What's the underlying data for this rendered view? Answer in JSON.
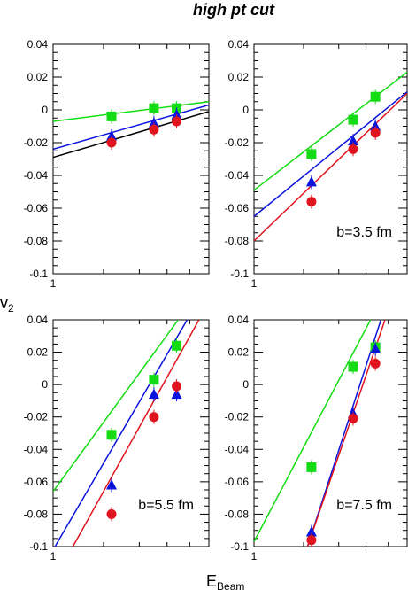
{
  "figure": {
    "title": "high pt cut",
    "ylabel_main": "v",
    "ylabel_sub": "2",
    "xlabel_main": "E",
    "xlabel_sub": "Beam"
  },
  "colors": {
    "red": "#e0141e",
    "blue": "#0a14dc",
    "green": "#14dc14",
    "black": "#000000"
  },
  "chart_data": [
    {
      "type": "scatter",
      "panel": "top-left",
      "note": "",
      "xscale": "log",
      "xlim": [
        1,
        3.5
      ],
      "ylim": [
        -0.1,
        0.04
      ],
      "x_tick_labels": [
        "1"
      ],
      "y_tick_labels": [
        "0.04",
        "0.02",
        "0",
        "-0.02",
        "-0.04",
        "-0.06",
        "-0.08",
        "-0.1"
      ],
      "series": [
        {
          "color": "green",
          "marker": "square",
          "x": [
            1.6,
            2.25,
            2.7
          ],
          "y": [
            -0.004,
            0.001,
            0.001
          ],
          "fit": [
            [
              1,
              -0.007
            ],
            [
              3.5,
              0.005
            ]
          ]
        },
        {
          "color": "blue",
          "marker": "triangle",
          "x": [
            1.6,
            2.25,
            2.7
          ],
          "y": [
            -0.016,
            -0.008,
            -0.003
          ],
          "fit": [
            [
              1,
              -0.024
            ],
            [
              3.5,
              0.003
            ]
          ]
        },
        {
          "color": "red",
          "marker": "circle",
          "x": [
            1.6,
            2.25,
            2.7
          ],
          "y": [
            -0.02,
            -0.012,
            -0.007
          ],
          "fit": null
        },
        {
          "color": "black",
          "marker": "none",
          "x": [],
          "y": [],
          "fit": [
            [
              1,
              -0.029
            ],
            [
              3.5,
              -0.001
            ]
          ]
        }
      ]
    },
    {
      "type": "scatter",
      "panel": "top-right",
      "note": "b=3.5 fm",
      "xscale": "log",
      "xlim": [
        1,
        3.5
      ],
      "ylim": [
        -0.1,
        0.04
      ],
      "x_tick_labels": [
        "1"
      ],
      "y_tick_labels": [
        "0.04",
        "0.02",
        "0",
        "-0.02",
        "-0.04",
        "-0.06",
        "-0.08",
        "-0.1"
      ],
      "series": [
        {
          "color": "green",
          "marker": "square",
          "x": [
            1.6,
            2.25,
            2.7
          ],
          "y": [
            -0.027,
            -0.006,
            0.008
          ],
          "fit": [
            [
              1,
              -0.049
            ],
            [
              3.5,
              0.023
            ]
          ]
        },
        {
          "color": "blue",
          "marker": "triangle",
          "x": [
            1.6,
            2.25,
            2.7
          ],
          "y": [
            -0.044,
            -0.019,
            -0.01
          ],
          "fit": [
            [
              1,
              -0.065
            ],
            [
              3.5,
              0.011
            ]
          ]
        },
        {
          "color": "red",
          "marker": "circle",
          "x": [
            1.6,
            2.25,
            2.7
          ],
          "y": [
            -0.056,
            -0.024,
            -0.014
          ],
          "fit": [
            [
              1,
              -0.08
            ],
            [
              3.5,
              0.01
            ]
          ]
        }
      ]
    },
    {
      "type": "scatter",
      "panel": "bottom-left",
      "note": "b=5.5 fm",
      "xscale": "log",
      "xlim": [
        1,
        3.5
      ],
      "ylim": [
        -0.1,
        0.04
      ],
      "x_tick_labels": [
        "1"
      ],
      "y_tick_labels": [
        "0.04",
        "0.02",
        "0",
        "-0.02",
        "-0.04",
        "-0.06",
        "-0.08",
        "-0.1"
      ],
      "series": [
        {
          "color": "green",
          "marker": "square",
          "x": [
            1.6,
            2.25,
            2.7
          ],
          "y": [
            -0.031,
            0.003,
            0.024
          ],
          "fit": [
            [
              1,
              -0.066
            ],
            [
              3.5,
              0.066
            ]
          ]
        },
        {
          "color": "blue",
          "marker": "triangle",
          "x": [
            1.6,
            2.25,
            2.7
          ],
          "y": [
            -0.062,
            -0.006,
            -0.006
          ],
          "fit": [
            [
              1,
              -0.102
            ],
            [
              3.5,
              0.063
            ]
          ]
        },
        {
          "color": "red",
          "marker": "circle",
          "x": [
            1.6,
            2.25,
            2.7
          ],
          "y": [
            -0.08,
            -0.02,
            -0.001
          ],
          "fit": [
            [
              1,
              -0.122
            ],
            [
              3.5,
              0.051
            ]
          ]
        }
      ]
    },
    {
      "type": "scatter",
      "panel": "bottom-right",
      "note": "b=7.5 fm",
      "xscale": "log",
      "xlim": [
        1,
        3.5
      ],
      "ylim": [
        -0.1,
        0.04
      ],
      "x_tick_labels": [
        "1"
      ],
      "y_tick_labels": [
        "0.04",
        "0.02",
        "0",
        "-0.02",
        "-0.04",
        "-0.06",
        "-0.08",
        "-0.1"
      ],
      "series": [
        {
          "color": "green",
          "marker": "square",
          "x": [
            1.6,
            2.25,
            2.7
          ],
          "y": [
            -0.051,
            0.011,
            0.023
          ],
          "fit": [
            [
              1,
              -0.097
            ],
            [
              3.5,
              0.083
            ]
          ]
        },
        {
          "color": "blue",
          "marker": "triangle",
          "x": [
            1.6,
            2.25,
            2.7
          ],
          "y": [
            -0.091,
            -0.018,
            0.022
          ],
          "fit": [
            [
              1.55,
              -0.1
            ],
            [
              3.5,
              0.09
            ]
          ]
        },
        {
          "color": "red",
          "marker": "circle",
          "x": [
            1.6,
            2.25,
            2.7
          ],
          "y": [
            -0.096,
            -0.021,
            0.013
          ],
          "fit": [
            [
              1.55,
              -0.1
            ],
            [
              3.5,
              0.08
            ]
          ]
        }
      ]
    }
  ]
}
